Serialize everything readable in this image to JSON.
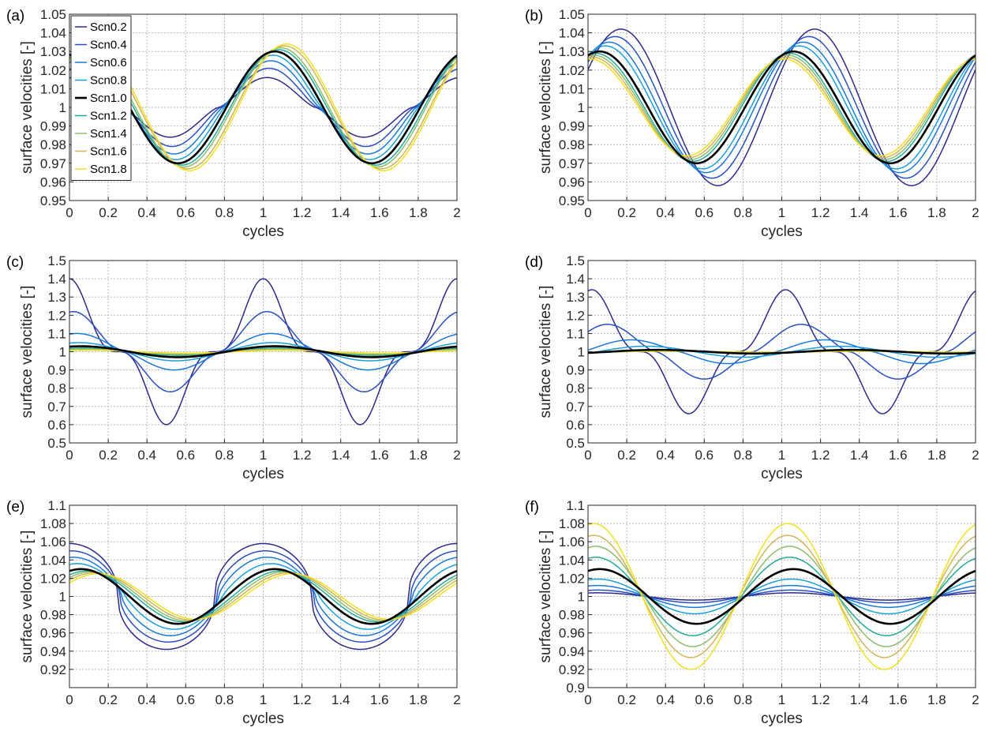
{
  "figure": {
    "colors": {
      "Scn0.2": "#2e2a8c",
      "Scn0.4": "#2a50c0",
      "Scn0.6": "#1a78d8",
      "Scn0.8": "#1aa0d8",
      "Scn1.0": "#000000",
      "Scn1.2": "#24a89a",
      "Scn1.4": "#8cbd6e",
      "Scn1.6": "#d4b45a",
      "Scn1.8": "#f2e020"
    },
    "legend": [
      "Scn0.2",
      "Scn0.4",
      "Scn0.6",
      "Scn0.8",
      "Scn1.0",
      "Scn1.2",
      "Scn1.4",
      "Scn1.6",
      "Scn1.8"
    ]
  },
  "chart_data": [
    {
      "panel": "(a)",
      "type": "line",
      "xlabel": "cycles",
      "ylabel": "surface velocities [-]",
      "xlim": [
        0,
        2
      ],
      "ylim": [
        0.95,
        1.05
      ],
      "xticks": [
        0,
        0.2,
        0.4,
        0.6,
        0.8,
        1,
        1.2,
        1.4,
        1.6,
        1.8,
        2
      ],
      "yticks": [
        0.95,
        0.96,
        0.97,
        0.98,
        0.99,
        1,
        1.01,
        1.02,
        1.03,
        1.04,
        1.05
      ],
      "grid": true,
      "legend_position": "top-left",
      "series": [
        {
          "name": "Scn0.2",
          "peak_x": 0.02,
          "amplitude": 0.016,
          "sharpness": 1.4
        },
        {
          "name": "Scn0.4",
          "peak_x": 0.03,
          "amplitude": 0.021,
          "sharpness": 1.3
        },
        {
          "name": "Scn0.6",
          "peak_x": 0.04,
          "amplitude": 0.025,
          "sharpness": 1.2
        },
        {
          "name": "Scn0.8",
          "peak_x": 0.05,
          "amplitude": 0.028,
          "sharpness": 1.1
        },
        {
          "name": "Scn1.0",
          "peak_x": 0.06,
          "amplitude": 0.03,
          "sharpness": 1.0
        },
        {
          "name": "Scn1.2",
          "peak_x": 0.08,
          "amplitude": 0.031,
          "sharpness": 1.0
        },
        {
          "name": "Scn1.4",
          "peak_x": 0.09,
          "amplitude": 0.032,
          "sharpness": 1.0
        },
        {
          "name": "Scn1.6",
          "peak_x": 0.11,
          "amplitude": 0.033,
          "sharpness": 1.0
        },
        {
          "name": "Scn1.8",
          "peak_x": 0.12,
          "amplitude": 0.034,
          "sharpness": 1.0
        }
      ]
    },
    {
      "panel": "(b)",
      "type": "line",
      "xlabel": "cycles",
      "ylabel": "surface velocities [-]",
      "xlim": [
        0,
        2
      ],
      "ylim": [
        0.95,
        1.05
      ],
      "xticks": [
        0,
        0.2,
        0.4,
        0.6,
        0.8,
        1,
        1.2,
        1.4,
        1.6,
        1.8,
        2
      ],
      "yticks": [
        0.95,
        0.96,
        0.97,
        0.98,
        0.99,
        1,
        1.01,
        1.02,
        1.03,
        1.04,
        1.05
      ],
      "grid": true,
      "series": [
        {
          "name": "Scn0.2",
          "peak_x": 0.17,
          "amplitude": 0.042,
          "sharpness": 1.0
        },
        {
          "name": "Scn0.4",
          "peak_x": 0.14,
          "amplitude": 0.038,
          "sharpness": 1.0
        },
        {
          "name": "Scn0.6",
          "peak_x": 0.11,
          "amplitude": 0.035,
          "sharpness": 1.0
        },
        {
          "name": "Scn0.8",
          "peak_x": 0.09,
          "amplitude": 0.033,
          "sharpness": 1.0
        },
        {
          "name": "Scn1.0",
          "peak_x": 0.06,
          "amplitude": 0.03,
          "sharpness": 1.0
        },
        {
          "name": "Scn1.2",
          "peak_x": 0.04,
          "amplitude": 0.029,
          "sharpness": 1.0
        },
        {
          "name": "Scn1.4",
          "peak_x": 0.03,
          "amplitude": 0.028,
          "sharpness": 1.0
        },
        {
          "name": "Scn1.6",
          "peak_x": 0.02,
          "amplitude": 0.027,
          "sharpness": 1.0
        },
        {
          "name": "Scn1.8",
          "peak_x": 0.01,
          "amplitude": 0.026,
          "sharpness": 1.0
        }
      ]
    },
    {
      "panel": "(c)",
      "type": "line",
      "xlabel": "cycles",
      "ylabel": "surface velocities [-]",
      "xlim": [
        0,
        2
      ],
      "ylim": [
        0.5,
        1.5
      ],
      "xticks": [
        0,
        0.2,
        0.4,
        0.6,
        0.8,
        1,
        1.2,
        1.4,
        1.6,
        1.8,
        2
      ],
      "yticks": [
        0.5,
        0.6,
        0.7,
        0.8,
        0.9,
        1,
        1.1,
        1.2,
        1.3,
        1.4,
        1.5
      ],
      "grid": true,
      "series": [
        {
          "name": "Scn0.2",
          "peak_x": 0.0,
          "amplitude": 0.4,
          "sharpness": 3.0
        },
        {
          "name": "Scn0.4",
          "peak_x": 0.02,
          "amplitude": 0.22,
          "sharpness": 1.8
        },
        {
          "name": "Scn0.6",
          "peak_x": 0.04,
          "amplitude": 0.1,
          "sharpness": 1.3
        },
        {
          "name": "Scn0.8",
          "peak_x": 0.05,
          "amplitude": 0.05,
          "sharpness": 1.1
        },
        {
          "name": "Scn1.0",
          "peak_x": 0.06,
          "amplitude": 0.03,
          "sharpness": 1.0
        },
        {
          "name": "Scn1.2",
          "peak_x": 0.07,
          "amplitude": 0.02,
          "sharpness": 1.0
        },
        {
          "name": "Scn1.4",
          "peak_x": 0.08,
          "amplitude": 0.014,
          "sharpness": 1.0
        },
        {
          "name": "Scn1.6",
          "peak_x": 0.09,
          "amplitude": 0.01,
          "sharpness": 1.0
        },
        {
          "name": "Scn1.8",
          "peak_x": 0.1,
          "amplitude": 0.008,
          "sharpness": 1.0
        }
      ]
    },
    {
      "panel": "(d)",
      "type": "line",
      "xlabel": "cycles",
      "ylabel": "surface velocities [-]",
      "xlim": [
        0,
        2
      ],
      "ylim": [
        0.5,
        1.5
      ],
      "xticks": [
        0,
        0.2,
        0.4,
        0.6,
        0.8,
        1,
        1.2,
        1.4,
        1.6,
        1.8,
        2
      ],
      "yticks": [
        0.5,
        0.6,
        0.7,
        0.8,
        0.9,
        1,
        1.1,
        1.2,
        1.3,
        1.4,
        1.5
      ],
      "grid": true,
      "series": [
        {
          "name": "Scn0.2",
          "peak_x": 0.02,
          "amplitude": 0.34,
          "sharpness": 2.6
        },
        {
          "name": "Scn0.4",
          "peak_x": 0.1,
          "amplitude": 0.15,
          "sharpness": 1.5
        },
        {
          "name": "Scn0.6",
          "peak_x": 0.22,
          "amplitude": 0.065,
          "sharpness": 1.2
        },
        {
          "name": "Scn0.8",
          "peak_x": 0.3,
          "amplitude": 0.03,
          "sharpness": 1.0
        },
        {
          "name": "Scn1.0",
          "peak_x": 0.36,
          "amplitude": 0.01,
          "sharpness": 1.0
        },
        {
          "name": "Scn1.2",
          "peak_x": 0.38,
          "amplitude": 0.007,
          "sharpness": 1.0
        },
        {
          "name": "Scn1.4",
          "peak_x": 0.4,
          "amplitude": 0.005,
          "sharpness": 1.0
        },
        {
          "name": "Scn1.6",
          "peak_x": 0.42,
          "amplitude": 0.004,
          "sharpness": 1.0
        },
        {
          "name": "Scn1.8",
          "peak_x": 0.44,
          "amplitude": 0.003,
          "sharpness": 1.0
        }
      ]
    },
    {
      "panel": "(e)",
      "type": "line",
      "xlabel": "cycles",
      "ylabel": "surface velocities [-]",
      "xlim": [
        0,
        2
      ],
      "ylim": [
        0.9,
        1.1
      ],
      "xticks": [
        0,
        0.2,
        0.4,
        0.6,
        0.8,
        1,
        1.2,
        1.4,
        1.6,
        1.8,
        2
      ],
      "yticks": [
        0.92,
        0.94,
        0.96,
        0.98,
        1,
        1.02,
        1.04,
        1.06,
        1.08,
        1.1
      ],
      "grid": true,
      "series": [
        {
          "name": "Scn0.2",
          "peak_x": 0.0,
          "amplitude": 0.058,
          "sharpness": 0.45
        },
        {
          "name": "Scn0.4",
          "peak_x": 0.01,
          "amplitude": 0.05,
          "sharpness": 0.55
        },
        {
          "name": "Scn0.6",
          "peak_x": 0.02,
          "amplitude": 0.043,
          "sharpness": 0.7
        },
        {
          "name": "Scn0.8",
          "peak_x": 0.04,
          "amplitude": 0.036,
          "sharpness": 0.85
        },
        {
          "name": "Scn1.0",
          "peak_x": 0.06,
          "amplitude": 0.03,
          "sharpness": 1.0
        },
        {
          "name": "Scn1.2",
          "peak_x": 0.09,
          "amplitude": 0.028,
          "sharpness": 1.0
        },
        {
          "name": "Scn1.4",
          "peak_x": 0.11,
          "amplitude": 0.027,
          "sharpness": 1.0
        },
        {
          "name": "Scn1.6",
          "peak_x": 0.13,
          "amplitude": 0.026,
          "sharpness": 1.0
        },
        {
          "name": "Scn1.8",
          "peak_x": 0.15,
          "amplitude": 0.025,
          "sharpness": 1.0
        }
      ]
    },
    {
      "panel": "(f)",
      "type": "line",
      "xlabel": "cycles",
      "ylabel": "surface velocities [-]",
      "xlim": [
        0,
        2
      ],
      "ylim": [
        0.9,
        1.1
      ],
      "xticks": [
        0,
        0.2,
        0.4,
        0.6,
        0.8,
        1,
        1.2,
        1.4,
        1.6,
        1.8,
        2
      ],
      "yticks": [
        0.9,
        0.92,
        0.94,
        0.96,
        0.98,
        1,
        1.02,
        1.04,
        1.06,
        1.08,
        1.1
      ],
      "grid": true,
      "series": [
        {
          "name": "Scn0.2",
          "peak_x": 0.05,
          "amplitude": 0.004,
          "sharpness": 1.0
        },
        {
          "name": "Scn0.4",
          "peak_x": 0.05,
          "amplitude": 0.007,
          "sharpness": 1.0
        },
        {
          "name": "Scn0.6",
          "peak_x": 0.05,
          "amplitude": 0.012,
          "sharpness": 1.0
        },
        {
          "name": "Scn0.8",
          "peak_x": 0.05,
          "amplitude": 0.019,
          "sharpness": 1.0
        },
        {
          "name": "Scn1.0",
          "peak_x": 0.06,
          "amplitude": 0.03,
          "sharpness": 1.0
        },
        {
          "name": "Scn1.2",
          "peak_x": 0.04,
          "amplitude": 0.043,
          "sharpness": 1.0
        },
        {
          "name": "Scn1.4",
          "peak_x": 0.04,
          "amplitude": 0.055,
          "sharpness": 1.0
        },
        {
          "name": "Scn1.6",
          "peak_x": 0.03,
          "amplitude": 0.067,
          "sharpness": 1.0
        },
        {
          "name": "Scn1.8",
          "peak_x": 0.03,
          "amplitude": 0.08,
          "sharpness": 1.0
        }
      ]
    }
  ]
}
